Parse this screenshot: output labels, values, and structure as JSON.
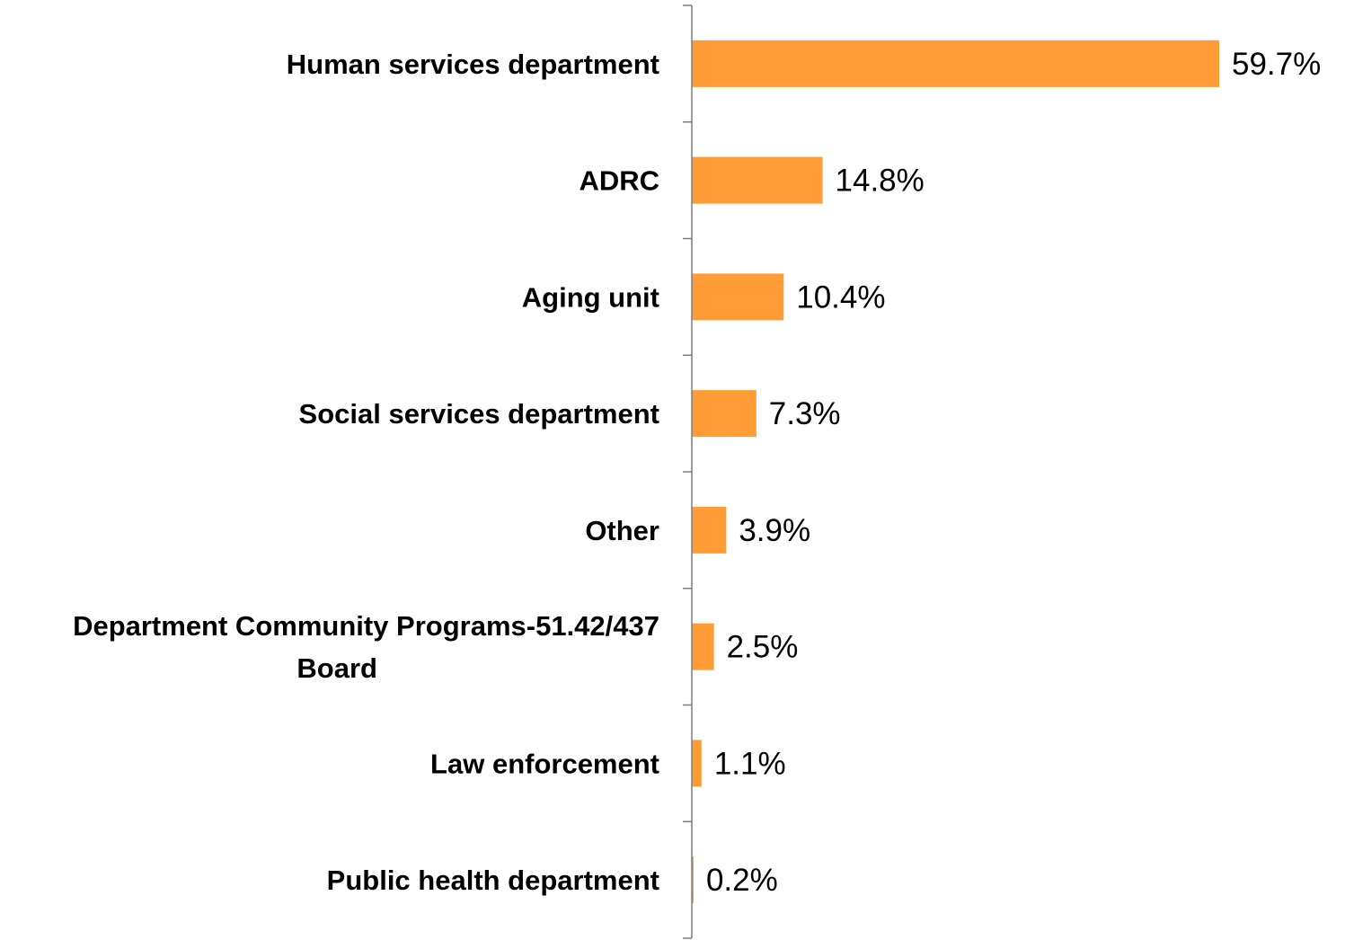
{
  "chart_data": {
    "type": "bar",
    "orientation": "horizontal",
    "title": "",
    "xlabel": "",
    "ylabel": "",
    "grid": false,
    "legend": "none",
    "value_suffix": "%",
    "bar_color": "#FF9C36",
    "xlim": [
      0,
      60
    ],
    "categories": [
      [
        "Human services department"
      ],
      [
        "ADRC"
      ],
      [
        "Aging unit"
      ],
      [
        "Social services department"
      ],
      [
        "Other"
      ],
      [
        "Department Community Programs-51.42/437",
        "Board"
      ],
      [
        "Law enforcement"
      ],
      [
        "Public health department"
      ]
    ],
    "values": [
      59.7,
      14.8,
      10.4,
      7.3,
      3.9,
      2.5,
      1.1,
      0.2
    ],
    "value_labels": [
      "59.7%",
      "14.8%",
      "10.4%",
      "7.3%",
      "3.9%",
      "2.5%",
      "1.1%",
      "0.2%"
    ]
  }
}
